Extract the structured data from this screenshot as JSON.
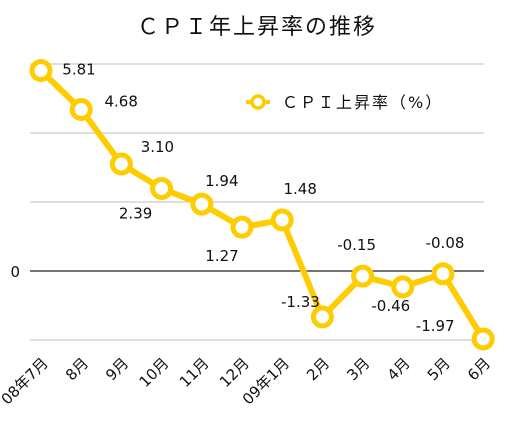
{
  "chart_data": {
    "type": "line",
    "title": "ＣＰＩ年上昇率の推移",
    "categories": [
      "08年7月",
      "8月",
      "9月",
      "10月",
      "11月",
      "12月",
      "09年1月",
      "2月",
      "3月",
      "4月",
      "5月",
      "6月"
    ],
    "series": [
      {
        "name": "ＣＰＩ上昇率（%）",
        "values": [
          5.81,
          4.68,
          3.1,
          2.39,
          1.94,
          1.27,
          1.48,
          -1.33,
          -0.15,
          -0.46,
          -0.08,
          -1.97
        ],
        "labels": [
          "5.81",
          "4.68",
          "3.10",
          "2.39",
          "1.94",
          "1.27",
          "1.48",
          "-1.33",
          "-0.15",
          "-0.46",
          "-0.08",
          "-1.97"
        ],
        "color": "#FFCC00"
      }
    ],
    "y_tick_labels": [
      {
        "value": 0,
        "label": "0"
      }
    ],
    "ylim": [
      -2,
      6
    ],
    "grid": true,
    "legend_position": "top-right"
  }
}
